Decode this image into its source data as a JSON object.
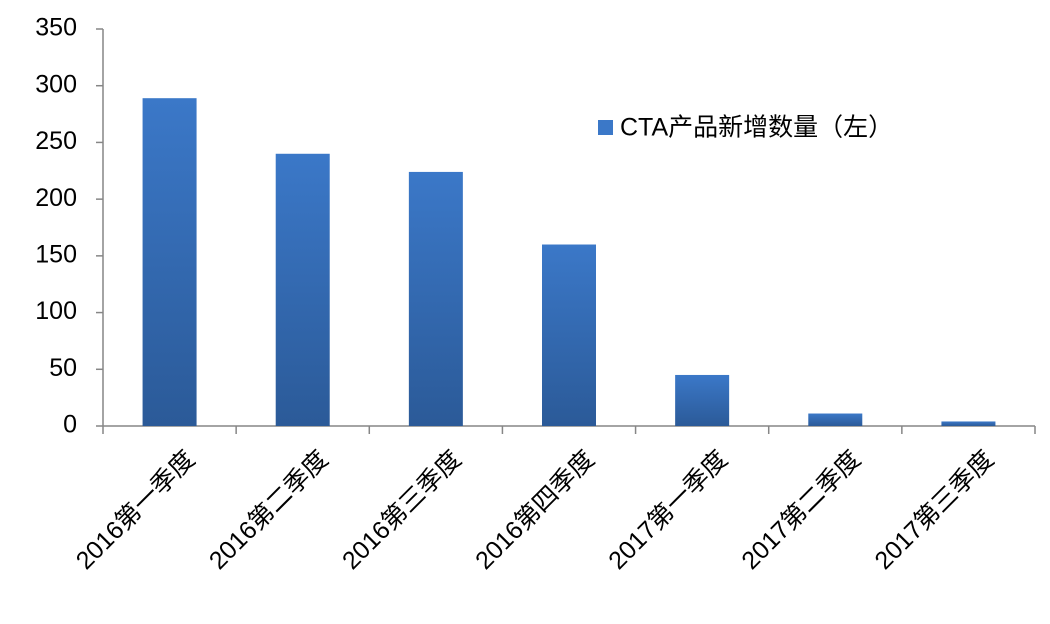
{
  "chart_data": {
    "type": "bar",
    "categories": [
      "2016第一季度",
      "2016第二季度",
      "2016第三季度",
      "2016第四季度",
      "2017第一季度",
      "2017第二季度",
      "2017第三季度"
    ],
    "series": [
      {
        "name": "CTA产品新增数量（左）",
        "color": "#3b78c8",
        "values": [
          289,
          240,
          224,
          160,
          45,
          11,
          4
        ]
      }
    ],
    "ylim": [
      0,
      350
    ],
    "yticks": [
      0,
      50,
      100,
      150,
      200,
      250,
      300,
      350
    ],
    "grid": false,
    "legend": "upper-right"
  }
}
